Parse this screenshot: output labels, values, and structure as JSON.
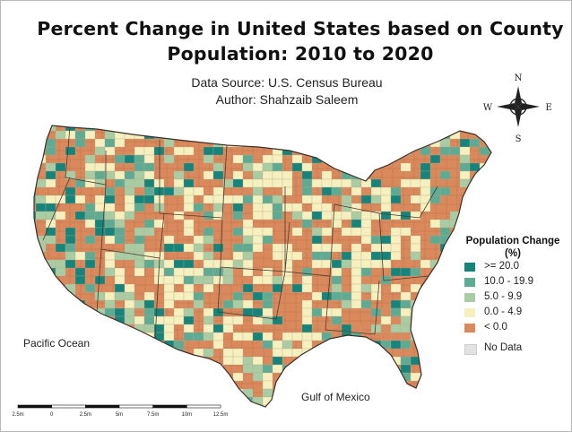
{
  "title_line1": "Percent Change in United States based on County",
  "title_line2": "Population: 2010 to 2020",
  "source": "Data Source: U.S. Census Bureau",
  "author": "Author: Shahzaib Saleem",
  "compass": {
    "n": "N",
    "s": "S",
    "e": "E",
    "w": "W"
  },
  "labels": {
    "pacific": "Pacific Ocean",
    "gulf": "Gulf of Mexico"
  },
  "legend": {
    "title_line1": "Population Change",
    "title_line2": "(%)",
    "items": [
      {
        "label": ">= 20.0",
        "color": "#16847a"
      },
      {
        "label": "10.0 - 19.9",
        "color": "#5faa92"
      },
      {
        "label": "5.0 - 9.9",
        "color": "#a9cca3"
      },
      {
        "label": "0.0 - 4.9",
        "color": "#f6efbe"
      },
      {
        "label": "< 0.0",
        "color": "#d9895b"
      }
    ],
    "nodata": {
      "label": "No Data",
      "color": "#e2e2e2"
    }
  },
  "scale": [
    "2.5m",
    "0",
    "2.5m",
    "5m",
    "7.5m",
    "10m",
    "12.5m"
  ]
}
